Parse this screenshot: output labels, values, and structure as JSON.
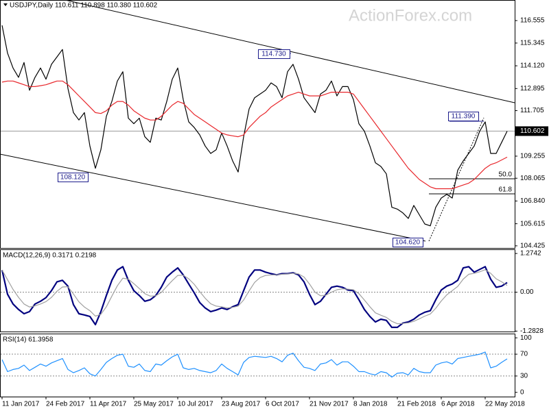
{
  "chart_data": [
    {
      "type": "line",
      "title": "USDJPY,Daily  110.611 110.898 110.380 110.602",
      "watermark": "ActionForex.com",
      "ylim": [
        104.31,
        117.59
      ],
      "yticks": [
        116.555,
        115.345,
        {
          "value": 114.12,
          "label": "114.120"
        },
        112.895,
        111.705,
        109.255,
        108.065,
        {
          "value": 106.84,
          "label": "106.840"
        },
        105.615,
        104.425
      ],
      "last_price": 110.602,
      "annotations": [
        "114.730",
        "108.120",
        "111.390",
        "104.620",
        "50.0",
        "61.8"
      ],
      "series": [
        {
          "color": "#000000",
          "values": [
            116.3,
            114.8,
            114.0,
            113.5,
            114.3,
            112.8,
            113.5,
            114.0,
            113.4,
            114.2,
            114.6,
            115.0,
            112.9,
            111.6,
            111.2,
            111.6,
            109.8,
            108.6,
            109.6,
            111.4,
            112.2,
            113.3,
            113.8,
            111.3,
            111.0,
            111.3,
            110.3,
            110.0,
            111.3,
            111.2,
            112.2,
            113.4,
            114.0,
            112.3,
            111.1,
            110.8,
            110.4,
            109.8,
            109.4,
            109.6,
            110.5,
            109.8,
            109.0,
            108.4,
            110.3,
            111.8,
            112.4,
            112.6,
            112.8,
            113.2,
            113.0,
            112.4,
            113.8,
            114.2,
            113.4,
            112.4,
            112.0,
            111.6,
            112.6,
            112.8,
            113.3,
            112.5,
            113.0,
            113.0,
            112.3,
            111.0,
            110.6,
            109.8,
            108.9,
            108.7,
            108.3,
            106.5,
            106.4,
            106.2,
            105.9,
            106.6,
            106.1,
            105.6,
            105.5,
            106.5,
            107.0,
            107.2,
            107.0,
            108.5,
            109.0,
            109.4,
            109.8,
            110.6,
            111.1,
            109.4,
            109.4,
            110.0,
            110.6
          ]
        },
        {
          "color": "#e8262b",
          "values": [
            113.24,
            113.3,
            113.3,
            113.2,
            113.1,
            113.0,
            113.0,
            113.05,
            113.1,
            113.2,
            113.3,
            113.3,
            113.1,
            112.8,
            112.5,
            112.2,
            111.9,
            111.6,
            111.55,
            111.7,
            112.0,
            112.2,
            112.2,
            112.0,
            111.7,
            111.5,
            111.3,
            111.2,
            111.2,
            111.4,
            111.7,
            112.0,
            112.2,
            112.1,
            111.8,
            111.5,
            111.3,
            111.1,
            110.9,
            110.7,
            110.5,
            110.4,
            110.35,
            110.3,
            110.4,
            110.8,
            111.1,
            111.4,
            111.6,
            111.9,
            112.1,
            112.3,
            112.5,
            112.6,
            112.7,
            112.6,
            112.5,
            112.5,
            112.5,
            112.6,
            112.7,
            112.7,
            112.7,
            112.7,
            112.6,
            112.2,
            111.8,
            111.4,
            111.0,
            110.6,
            110.2,
            109.8,
            109.4,
            109.0,
            108.6,
            108.3,
            108.0,
            107.8,
            107.6,
            107.5,
            107.5,
            107.5,
            107.5,
            107.6,
            107.7,
            107.8,
            108.0,
            108.3,
            108.6,
            108.8,
            108.9,
            109.05,
            109.2
          ]
        }
      ]
    },
    {
      "type": "line",
      "title": "MACD(12,26,9) 0.3171 0.2198",
      "ylim": [
        -1.297,
        1.388
      ],
      "yticks": [
        1.2742,
        {
          "value": 0,
          "label": "0.00"
        },
        -1.2828
      ],
      "levels": [
        0
      ],
      "series": [
        {
          "color": "#00007f",
          "values": [
            0.73,
            -0.07,
            -0.39,
            -0.57,
            -0.71,
            -0.64,
            -0.39,
            -0.3,
            -0.18,
            0.05,
            0.34,
            0.39,
            0.2,
            -0.41,
            -0.71,
            -0.75,
            -0.8,
            -1.07,
            -0.64,
            -0.11,
            0.39,
            0.73,
            0.84,
            0.39,
            0.05,
            -0.11,
            -0.3,
            -0.25,
            -0.11,
            0.16,
            0.5,
            0.66,
            0.8,
            0.57,
            0.27,
            -0.02,
            -0.34,
            -0.52,
            -0.64,
            -0.59,
            -0.52,
            -0.57,
            -0.48,
            -0.41,
            0.05,
            0.5,
            0.73,
            0.73,
            0.66,
            0.61,
            0.57,
            0.61,
            0.61,
            0.64,
            0.57,
            0.34,
            -0.07,
            -0.41,
            -0.3,
            -0.07,
            0.16,
            0.2,
            0.16,
            0.07,
            0.05,
            -0.25,
            -0.57,
            -0.8,
            -0.98,
            -0.89,
            -0.93,
            -1.16,
            -1.16,
            -1.02,
            -0.98,
            -0.89,
            -0.75,
            -0.66,
            -0.61,
            -0.25,
            0.07,
            0.2,
            0.27,
            0.39,
            0.8,
            0.84,
            0.66,
            0.75,
            0.84,
            0.43,
            0.16,
            0.2,
            0.3171
          ]
        },
        {
          "color": "#a0a0a0",
          "values": [
            0.73,
            0.41,
            0.09,
            -0.17,
            -0.39,
            -0.49,
            -0.45,
            -0.39,
            -0.31,
            -0.17,
            0.03,
            0.17,
            0.18,
            -0.06,
            -0.32,
            -0.49,
            -0.61,
            -0.79,
            -0.73,
            -0.48,
            -0.13,
            0.21,
            0.46,
            0.43,
            0.28,
            0.12,
            -0.05,
            -0.13,
            -0.12,
            -0.01,
            0.19,
            0.38,
            0.55,
            0.56,
            0.44,
            0.26,
            0.02,
            -0.2,
            -0.38,
            -0.46,
            -0.48,
            -0.52,
            -0.5,
            -0.46,
            -0.26,
            0.04,
            0.32,
            0.48,
            0.55,
            0.57,
            0.57,
            0.59,
            0.6,
            0.62,
            0.6,
            0.5,
            0.27,
            0.0,
            -0.12,
            -0.1,
            0.0,
            0.08,
            0.11,
            0.1,
            0.08,
            -0.05,
            -0.26,
            -0.48,
            -0.68,
            -0.76,
            -0.83,
            -0.96,
            -1.04,
            -1.03,
            -1.01,
            -0.96,
            -0.88,
            -0.79,
            -0.72,
            -0.53,
            -0.29,
            -0.09,
            0.05,
            0.19,
            0.43,
            0.59,
            0.62,
            0.67,
            0.74,
            0.62,
            0.44,
            0.34,
            0.2198
          ]
        }
      ]
    },
    {
      "type": "line",
      "title": "RSI(14) 61.3958",
      "ylim": [
        -7.8,
        106.5
      ],
      "yticks": [
        100,
        70,
        30,
        0
      ],
      "levels": [
        70,
        30
      ],
      "categories": [
        "11 Jan 2017",
        null,
        null,
        null,
        null,
        null,
        null,
        null,
        "24 Feb 2017",
        null,
        null,
        null,
        null,
        null,
        null,
        null,
        "11 Apr 2017",
        null,
        null,
        null,
        null,
        null,
        null,
        null,
        "25 May 2017",
        null,
        null,
        null,
        null,
        null,
        null,
        null,
        "10 Jul 2017",
        null,
        null,
        null,
        null,
        null,
        null,
        null,
        "23 Aug 2017",
        null,
        null,
        null,
        null,
        null,
        null,
        null,
        "6 Oct 2017",
        null,
        null,
        null,
        null,
        null,
        null,
        null,
        "21 Nov 2017",
        null,
        null,
        null,
        null,
        null,
        null,
        null,
        "8 Jan 2018",
        null,
        null,
        null,
        null,
        null,
        null,
        null,
        "21 Feb 2018",
        null,
        null,
        null,
        null,
        null,
        null,
        null,
        "6 Apr 2018",
        null,
        null,
        null,
        null,
        null,
        null,
        null,
        "22 May 2018",
        null,
        null,
        null,
        null
      ],
      "series": [
        {
          "color": "#1e90ff",
          "values": [
            60,
            38,
            42,
            44,
            50,
            40,
            46,
            52,
            48,
            54,
            58,
            62,
            42,
            36,
            40,
            45,
            34,
            30,
            42,
            55,
            62,
            68,
            70,
            48,
            46,
            52,
            40,
            38,
            52,
            50,
            58,
            65,
            70,
            45,
            42,
            44,
            40,
            38,
            36,
            40,
            52,
            44,
            38,
            32,
            55,
            64,
            66,
            65,
            64,
            66,
            62,
            56,
            68,
            72,
            58,
            46,
            44,
            40,
            52,
            54,
            60,
            50,
            56,
            56,
            48,
            38,
            38,
            34,
            32,
            38,
            36,
            28,
            35,
            36,
            32,
            44,
            38,
            36,
            36,
            50,
            54,
            56,
            52,
            62,
            64,
            66,
            68,
            70,
            74,
            45,
            48,
            55,
            61.3958
          ]
        }
      ]
    }
  ]
}
